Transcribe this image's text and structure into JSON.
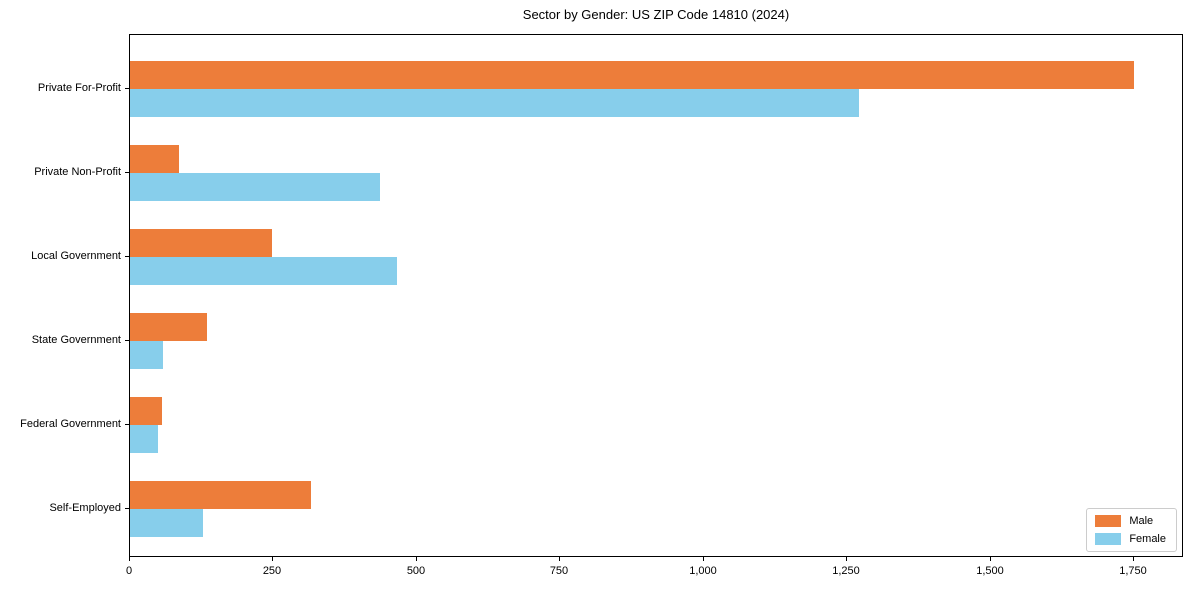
{
  "figure": {
    "background": "#ffffff",
    "axis_color": "#000000",
    "text_color": "#000000",
    "legend_border_color": "#cccccc"
  },
  "chart_data": {
    "type": "bar",
    "orientation": "horizontal",
    "title": "Sector by Gender: US ZIP Code 14810 (2024)",
    "categories": [
      "Private For-Profit",
      "Private Non-Profit",
      "Local Government",
      "State Government",
      "Federal Government",
      "Self-Employed"
    ],
    "series": [
      {
        "name": "Male",
        "color": "#ed7d3a",
        "values": [
          1750,
          85,
          248,
          135,
          55,
          315
        ]
      },
      {
        "name": "Female",
        "color": "#87ceeb",
        "values": [
          1270,
          435,
          465,
          57,
          48,
          128
        ]
      }
    ],
    "xlabel": "",
    "ylabel": "",
    "xlim": [
      0,
      1837
    ],
    "xticks": [
      0,
      250,
      500,
      750,
      1000,
      1250,
      1500,
      1750
    ],
    "xtick_labels": [
      "0",
      "250",
      "500",
      "750",
      "1,000",
      "1,250",
      "1,500",
      "1,750"
    ],
    "grid": false,
    "legend_position": "lower right"
  }
}
